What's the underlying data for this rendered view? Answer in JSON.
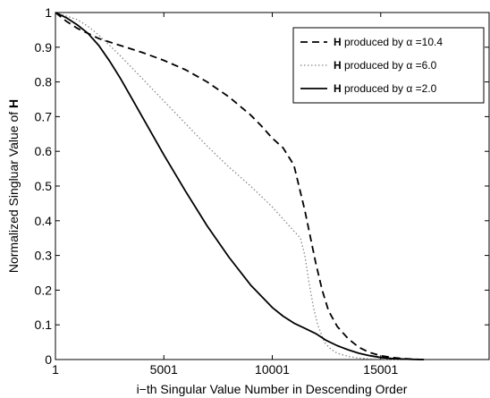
{
  "chart_data": {
    "type": "line",
    "title": "",
    "xlabel": "i−th Singular Value Number in Descending Order",
    "ylabel_prefix": "Normalized Singluar Value of ",
    "ylabel_bold": "H",
    "xlim": [
      1,
      20000
    ],
    "ylim": [
      0,
      1
    ],
    "x_ticks": [
      1,
      5001,
      10001,
      15001
    ],
    "y_ticks": [
      0,
      0.1,
      0.2,
      0.3,
      0.4,
      0.5,
      0.6,
      0.7,
      0.8,
      0.9,
      1
    ],
    "grid": false,
    "legend_position": "top-right",
    "series": [
      {
        "name_bold": "H",
        "name_rest": " produced by α =10.4",
        "style": "dashed",
        "color": "#000000",
        "x": [
          1,
          500,
          1000,
          1500,
          2000,
          2500,
          3000,
          4000,
          5000,
          6000,
          7000,
          8000,
          9000,
          9500,
          10000,
          10500,
          11000,
          11500,
          12000,
          12300,
          12600,
          13000,
          13500,
          14000,
          14500,
          15000,
          15500,
          16000,
          16500,
          17000
        ],
        "y": [
          1.0,
          0.975,
          0.955,
          0.94,
          0.925,
          0.915,
          0.905,
          0.885,
          0.862,
          0.835,
          0.8,
          0.757,
          0.705,
          0.673,
          0.638,
          0.61,
          0.56,
          0.43,
          0.28,
          0.2,
          0.14,
          0.095,
          0.06,
          0.035,
          0.02,
          0.011,
          0.006,
          0.003,
          0.001,
          0.0
        ]
      },
      {
        "name_bold": "H",
        "name_rest": " produced by α =6.0",
        "style": "dotted",
        "color": "#888888",
        "x": [
          1,
          500,
          1000,
          1500,
          2000,
          3000,
          4000,
          5000,
          6000,
          7000,
          8000,
          9000,
          10000,
          10500,
          11000,
          11300,
          11500,
          11700,
          11900,
          12100,
          12400,
          12700,
          13000,
          13500,
          14000,
          14500,
          15000,
          16000
        ],
        "y": [
          1.0,
          0.99,
          0.98,
          0.96,
          0.935,
          0.875,
          0.81,
          0.745,
          0.68,
          0.615,
          0.555,
          0.5,
          0.44,
          0.405,
          0.37,
          0.35,
          0.3,
          0.22,
          0.15,
          0.1,
          0.05,
          0.03,
          0.018,
          0.009,
          0.004,
          0.002,
          0.001,
          0.0
        ]
      },
      {
        "name_bold": "H",
        "name_rest": " produced by α =2.0",
        "style": "solid",
        "color": "#000000",
        "x": [
          1,
          500,
          1000,
          1500,
          2000,
          2500,
          3000,
          3500,
          4000,
          5000,
          6000,
          7000,
          8000,
          9000,
          10000,
          10500,
          11000,
          11500,
          12000,
          12500,
          13000,
          13500,
          14000,
          14500,
          15000,
          15500,
          16000,
          16500,
          17000
        ],
        "y": [
          1.0,
          0.985,
          0.965,
          0.94,
          0.905,
          0.86,
          0.81,
          0.755,
          0.7,
          0.59,
          0.485,
          0.385,
          0.295,
          0.215,
          0.15,
          0.125,
          0.105,
          0.09,
          0.075,
          0.055,
          0.04,
          0.028,
          0.018,
          0.011,
          0.006,
          0.003,
          0.0015,
          0.0005,
          0.0
        ]
      }
    ]
  }
}
